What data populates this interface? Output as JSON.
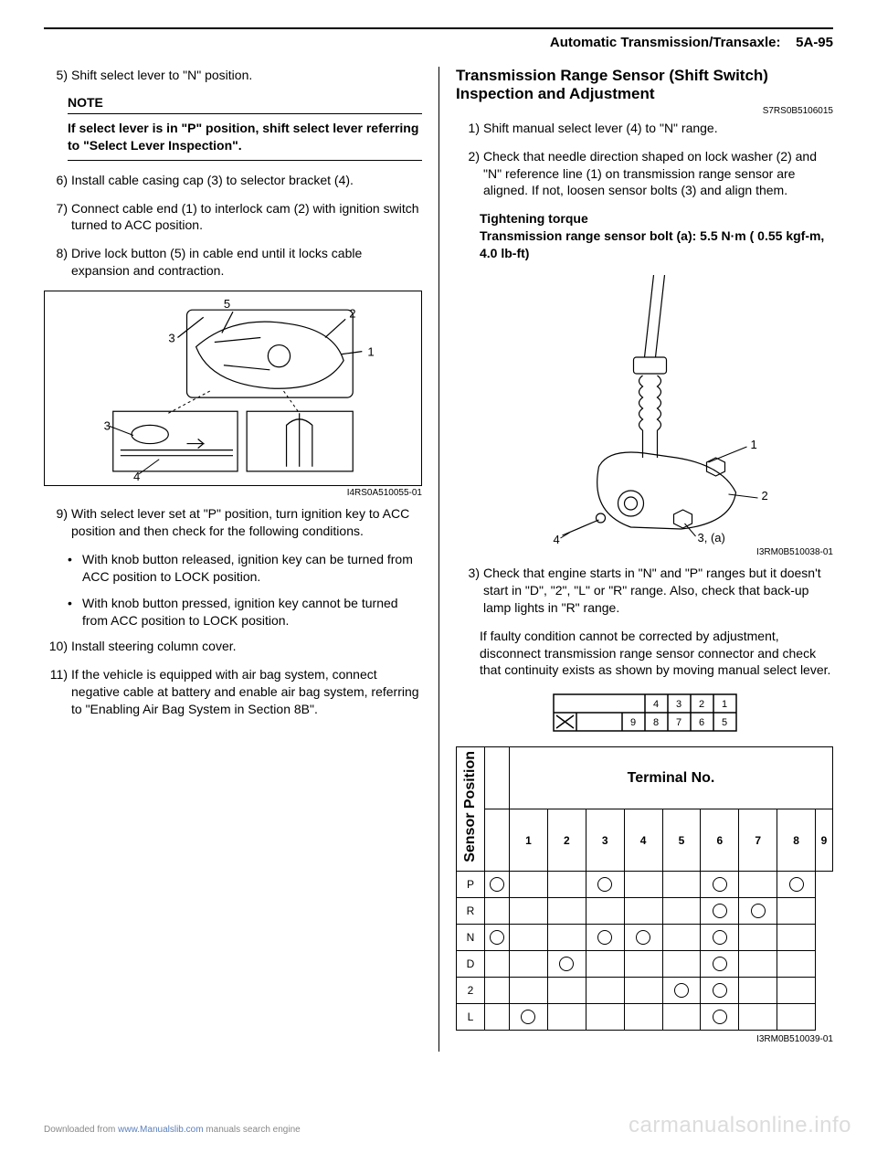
{
  "header": {
    "title": "Automatic Transmission/Transaxle:",
    "page": "5A-95"
  },
  "left": {
    "step5": {
      "no": "5)",
      "text": "Shift select lever to \"N\" position."
    },
    "note_title": "NOTE",
    "note_body": "If select lever is in \"P\" position, shift select lever referring to \"Select Lever Inspection\".",
    "step6": {
      "no": "6)",
      "text": "Install cable casing cap (3) to selector bracket (4)."
    },
    "step7": {
      "no": "7)",
      "text": "Connect cable end (1) to interlock cam (2) with ignition switch turned to ACC position."
    },
    "step8": {
      "no": "8)",
      "text": "Drive lock button (5) in cable end until it locks cable expansion and contraction."
    },
    "fig1_code": "I4RS0A510055-01",
    "fig1_labels": {
      "l1": "1",
      "l2": "2",
      "l3a": "3",
      "l3b": "3",
      "l4": "4",
      "l5": "5"
    },
    "step9": {
      "no": "9)",
      "text": "With select lever set at \"P\" position, turn ignition key to ACC position and then check for the following conditions."
    },
    "bullet1": "With knob button released, ignition key can be turned from ACC position to LOCK position.",
    "bullet2": "With knob button pressed, ignition key cannot be turned from ACC position to LOCK position.",
    "step10": {
      "no": "10)",
      "text": "Install steering column cover."
    },
    "step11": {
      "no": "11)",
      "text": "If the vehicle is equipped with air bag system, connect negative cable at battery and enable air bag system, referring to \"Enabling Air Bag System in Section 8B\"."
    }
  },
  "right": {
    "section_title_l1": "Transmission Range Sensor (Shift Switch)",
    "section_title_l2": "Inspection and Adjustment",
    "section_code": "S7RS0B5106015",
    "step1": {
      "no": "1)",
      "text": "Shift manual select lever (4) to \"N\" range."
    },
    "step2": {
      "no": "2)",
      "text": "Check that needle direction shaped on lock washer (2) and \"N\" reference line (1) on transmission range sensor are aligned. If not, loosen sensor bolts (3) and align them."
    },
    "torque_title": "Tightening torque",
    "torque_body": "Transmission range sensor bolt (a):  5.5 N·m ( 0.55 kgf-m, 4.0 lb-ft)",
    "fig2_code": "I3RM0B510038-01",
    "fig2_labels": {
      "l1": "1",
      "l2": "2",
      "l3": "3, (a)",
      "l4": "4"
    },
    "step3": {
      "no": "3)",
      "text": "Check that engine starts in \"N\" and \"P\" ranges but it doesn't start in \"D\", \"2\", \"L\" or \"R\" range. Also, check that back-up lamp lights in \"R\" range."
    },
    "para3b": "If faulty condition cannot be corrected by adjustment, disconnect transmission range sensor connector and check that continuity exists as shown by moving manual select lever.",
    "connector_nums": [
      "4",
      "3",
      "2",
      "1",
      "9",
      "8",
      "7",
      "6",
      "5"
    ],
    "table": {
      "title": "Terminal No.",
      "side": "Sensor Position",
      "cols": [
        "1",
        "2",
        "3",
        "4",
        "5",
        "6",
        "7",
        "8",
        "9"
      ],
      "rows": [
        {
          "label": "P",
          "marks": [
            1,
            0,
            0,
            1,
            0,
            0,
            1,
            0,
            1
          ]
        },
        {
          "label": "R",
          "marks": [
            0,
            0,
            0,
            0,
            0,
            0,
            1,
            1,
            0
          ]
        },
        {
          "label": "N",
          "marks": [
            1,
            0,
            0,
            1,
            1,
            0,
            1,
            0,
            0
          ]
        },
        {
          "label": "D",
          "marks": [
            0,
            0,
            1,
            0,
            0,
            0,
            1,
            0,
            0
          ]
        },
        {
          "label": "2",
          "marks": [
            0,
            0,
            0,
            0,
            0,
            1,
            1,
            0,
            0
          ]
        },
        {
          "label": "L",
          "marks": [
            0,
            1,
            0,
            0,
            0,
            0,
            1,
            0,
            0
          ]
        }
      ]
    },
    "fig3_code": "I3RM0B510039-01"
  },
  "footer": {
    "left_pre": "Downloaded from ",
    "left_link": "www.Manualslib.com",
    "left_post": " manuals search engine",
    "right": "carmanualsonline.info"
  },
  "colors": {
    "text": "#000000",
    "bg": "#ffffff",
    "footer_gray": "#888888",
    "watermark": "#dcdcdc",
    "link": "#5a7fbf"
  }
}
